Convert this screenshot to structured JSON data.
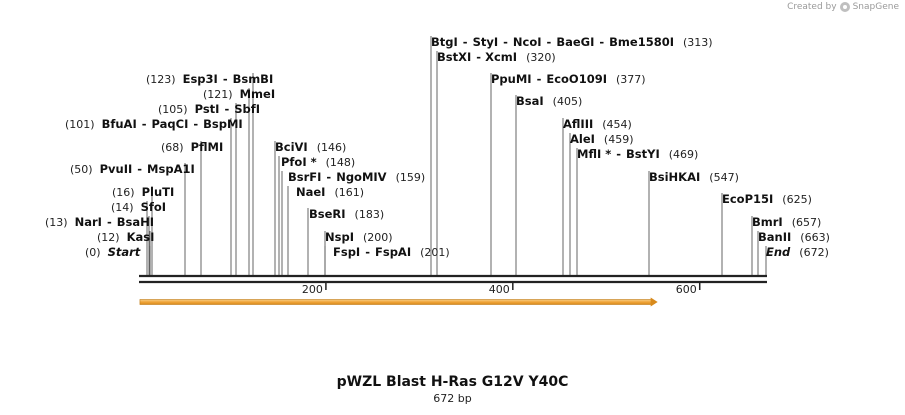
{
  "credit": {
    "prefix": "Created by",
    "brand": "SnapGene"
  },
  "title": "pWZL Blast H-Ras G12V Y40C",
  "length_label": "672 bp",
  "sequence_length": 672,
  "ruler_ticks": [
    200,
    400,
    600
  ],
  "feature": {
    "start": 1,
    "end": 555,
    "color": "#f0a53a"
  },
  "sites": [
    {
      "names": [
        "Start"
      ],
      "pos": "(0)",
      "bp": 0,
      "italic": true
    },
    {
      "names": [
        "KasI"
      ],
      "pos": "(12)",
      "bp": 12
    },
    {
      "names": [
        "NarI",
        "BsaHI"
      ],
      "pos": "(13)",
      "bp": 13
    },
    {
      "names": [
        "SfoI"
      ],
      "pos": "(14)",
      "bp": 14
    },
    {
      "names": [
        "PluTI"
      ],
      "pos": "(16)",
      "bp": 16
    },
    {
      "names": [
        "PvuII",
        "MspA1I"
      ],
      "pos": "(50)",
      "bp": 50
    },
    {
      "names": [
        "PflMI"
      ],
      "pos": "(68)",
      "bp": 68
    },
    {
      "names": [
        "BfuAI",
        "PaqCI",
        "BspMI"
      ],
      "pos": "(101)",
      "bp": 101
    },
    {
      "names": [
        "PstI",
        "SbfI"
      ],
      "pos": "(105)",
      "bp": 105
    },
    {
      "names": [
        "MmeI"
      ],
      "pos": "(121)",
      "bp": 121
    },
    {
      "names": [
        "Esp3I",
        "BsmBI"
      ],
      "pos": "(123)",
      "bp": 123
    },
    {
      "names": [
        "BciVI"
      ],
      "pos": "(146)",
      "bp": 146
    },
    {
      "names": [
        "PfoI *"
      ],
      "pos": "(148)",
      "bp": 148
    },
    {
      "names": [
        "BsrFI",
        "NgoMIV"
      ],
      "pos": "(159)",
      "bp": 159
    },
    {
      "names": [
        "NaeI"
      ],
      "pos": "(161)",
      "bp": 161
    },
    {
      "names": [
        "BseRI"
      ],
      "pos": "(183)",
      "bp": 183
    },
    {
      "names": [
        "NspI"
      ],
      "pos": "(200)",
      "bp": 200
    },
    {
      "names": [
        "FspI",
        "FspAI"
      ],
      "pos": "(201)",
      "bp": 201
    },
    {
      "names": [
        "BtgI",
        "StyI",
        "NcoI",
        "BaeGI",
        "Bme1580I"
      ],
      "pos": "(313)",
      "bp": 313
    },
    {
      "names": [
        "BstXI",
        "XcmI"
      ],
      "pos": "(320)",
      "bp": 320
    },
    {
      "names": [
        "PpuMI",
        "EcoO109I"
      ],
      "pos": "(377)",
      "bp": 377
    },
    {
      "names": [
        "BsaI"
      ],
      "pos": "(405)",
      "bp": 405
    },
    {
      "names": [
        "AflIII"
      ],
      "pos": "(454)",
      "bp": 454
    },
    {
      "names": [
        "AleI"
      ],
      "pos": "(459)",
      "bp": 459
    },
    {
      "names": [
        "MflI *",
        "BstYI"
      ],
      "pos": "(469)",
      "bp": 469
    },
    {
      "names": [
        "BsiHKAI"
      ],
      "pos": "(547)",
      "bp": 547
    },
    {
      "names": [
        "EcoP15I"
      ],
      "pos": "(625)",
      "bp": 625
    },
    {
      "names": [
        "BmrI"
      ],
      "pos": "(657)",
      "bp": 657
    },
    {
      "names": [
        "BanII"
      ],
      "pos": "(663)",
      "bp": 663
    },
    {
      "names": [
        "End"
      ],
      "pos": "(672)",
      "bp": 672,
      "italic": true
    }
  ]
}
